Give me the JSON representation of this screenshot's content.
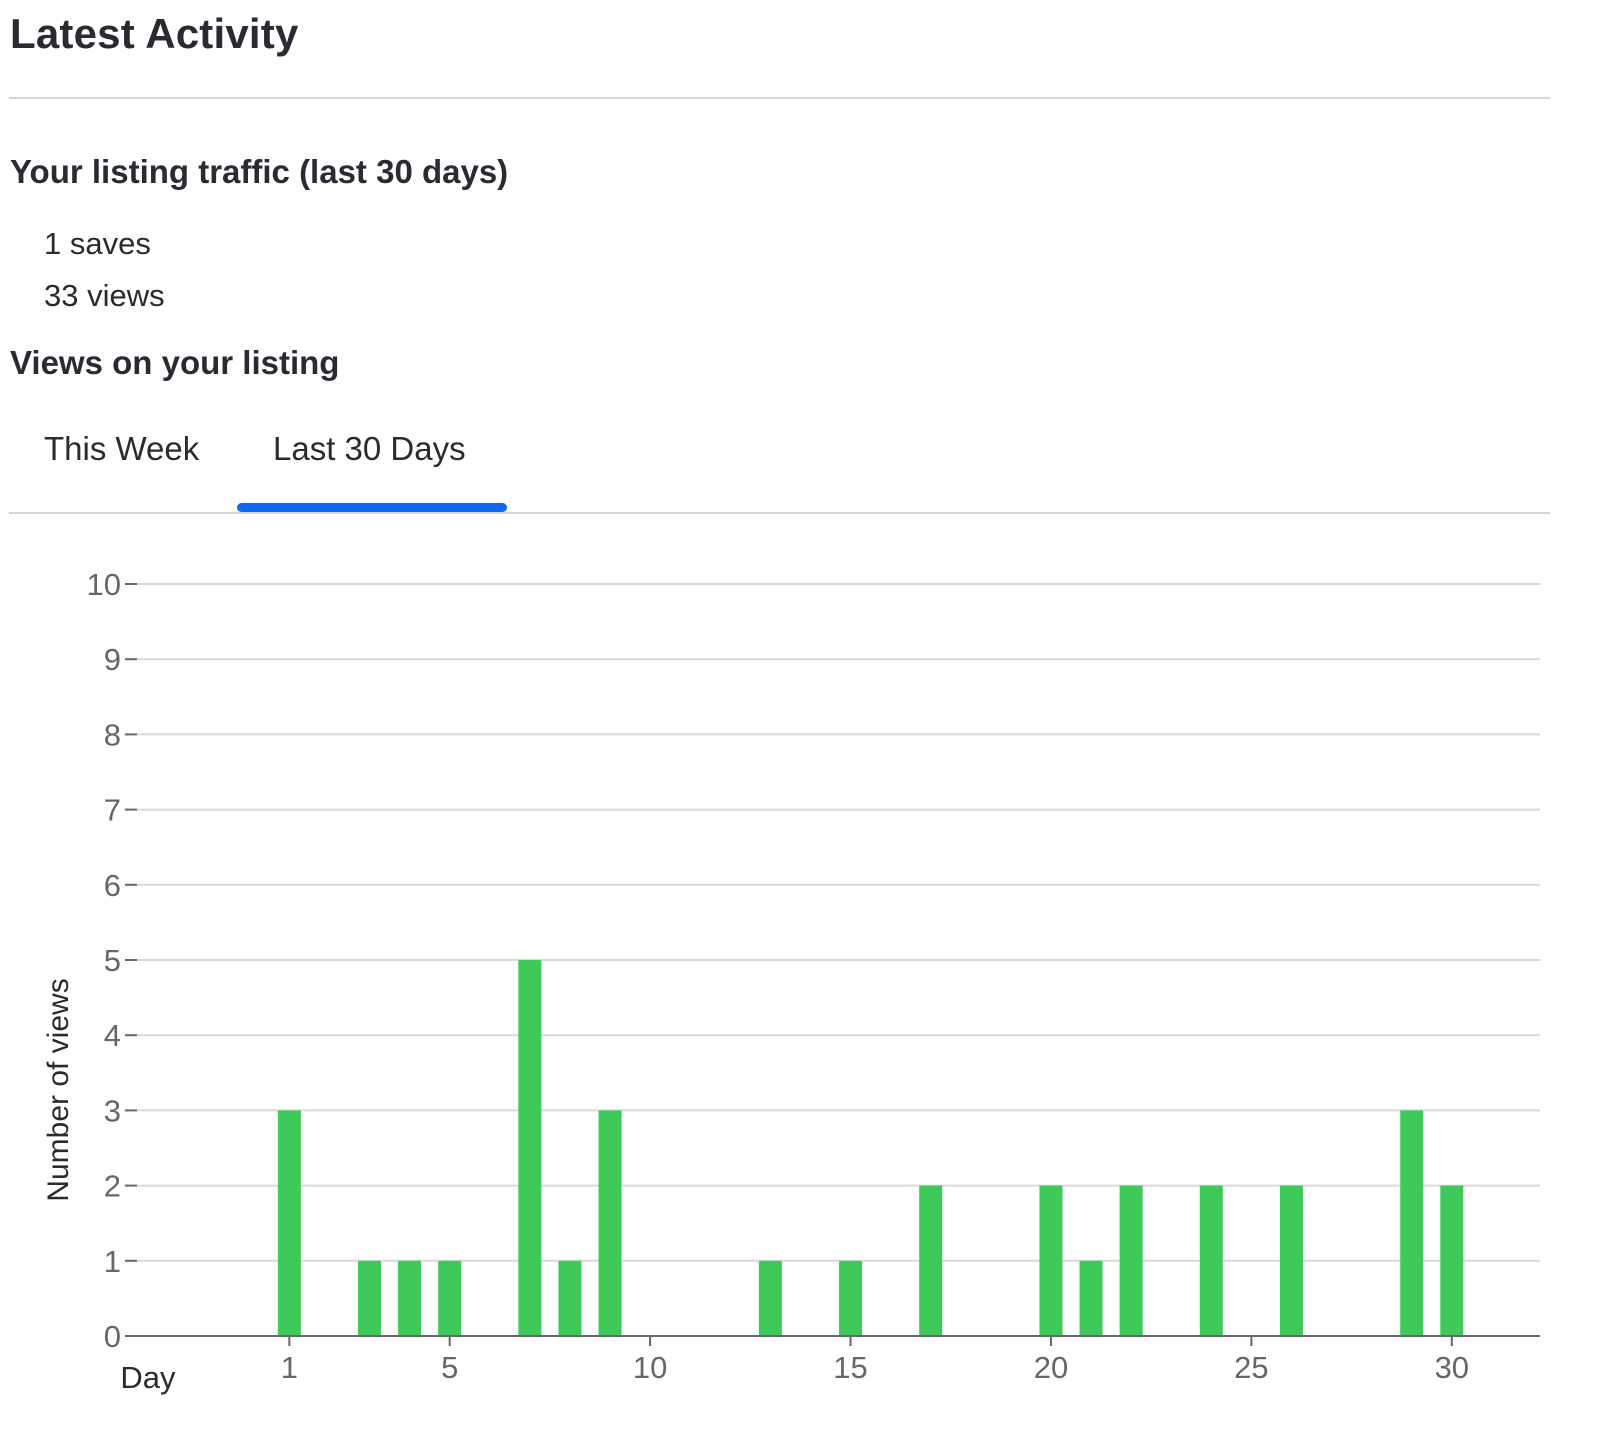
{
  "header": {
    "title": "Latest Activity"
  },
  "traffic": {
    "title": "Your listing traffic (last 30 days)",
    "saves": "1 saves",
    "views": "33 views"
  },
  "views_section": {
    "title": "Views on your listing"
  },
  "tabs": [
    {
      "label": "This Week",
      "selected": false
    },
    {
      "label": "Last 30 Days",
      "selected": true
    }
  ],
  "colors": {
    "bar": "#3ec95a",
    "accent": "#0a6bef",
    "grid": "#d9d9d9",
    "axis": "#666666"
  },
  "chart_data": {
    "type": "bar",
    "xlabel": "Day",
    "ylabel": "Number of views",
    "x": [
      1,
      3,
      4,
      5,
      7,
      8,
      9,
      13,
      15,
      17,
      20,
      21,
      22,
      24,
      26,
      29,
      30
    ],
    "values": [
      3,
      1,
      1,
      1,
      5,
      1,
      3,
      1,
      1,
      2,
      2,
      1,
      2,
      2,
      2,
      3,
      2
    ],
    "xlim": [
      -3.1,
      32.2
    ],
    "xticks": [
      1,
      5,
      10,
      15,
      20,
      25,
      30
    ],
    "ylim": [
      0,
      10
    ],
    "yticks": [
      0,
      1,
      2,
      3,
      4,
      5,
      6,
      7,
      8,
      9,
      10
    ],
    "grid": true,
    "legend": "none"
  }
}
